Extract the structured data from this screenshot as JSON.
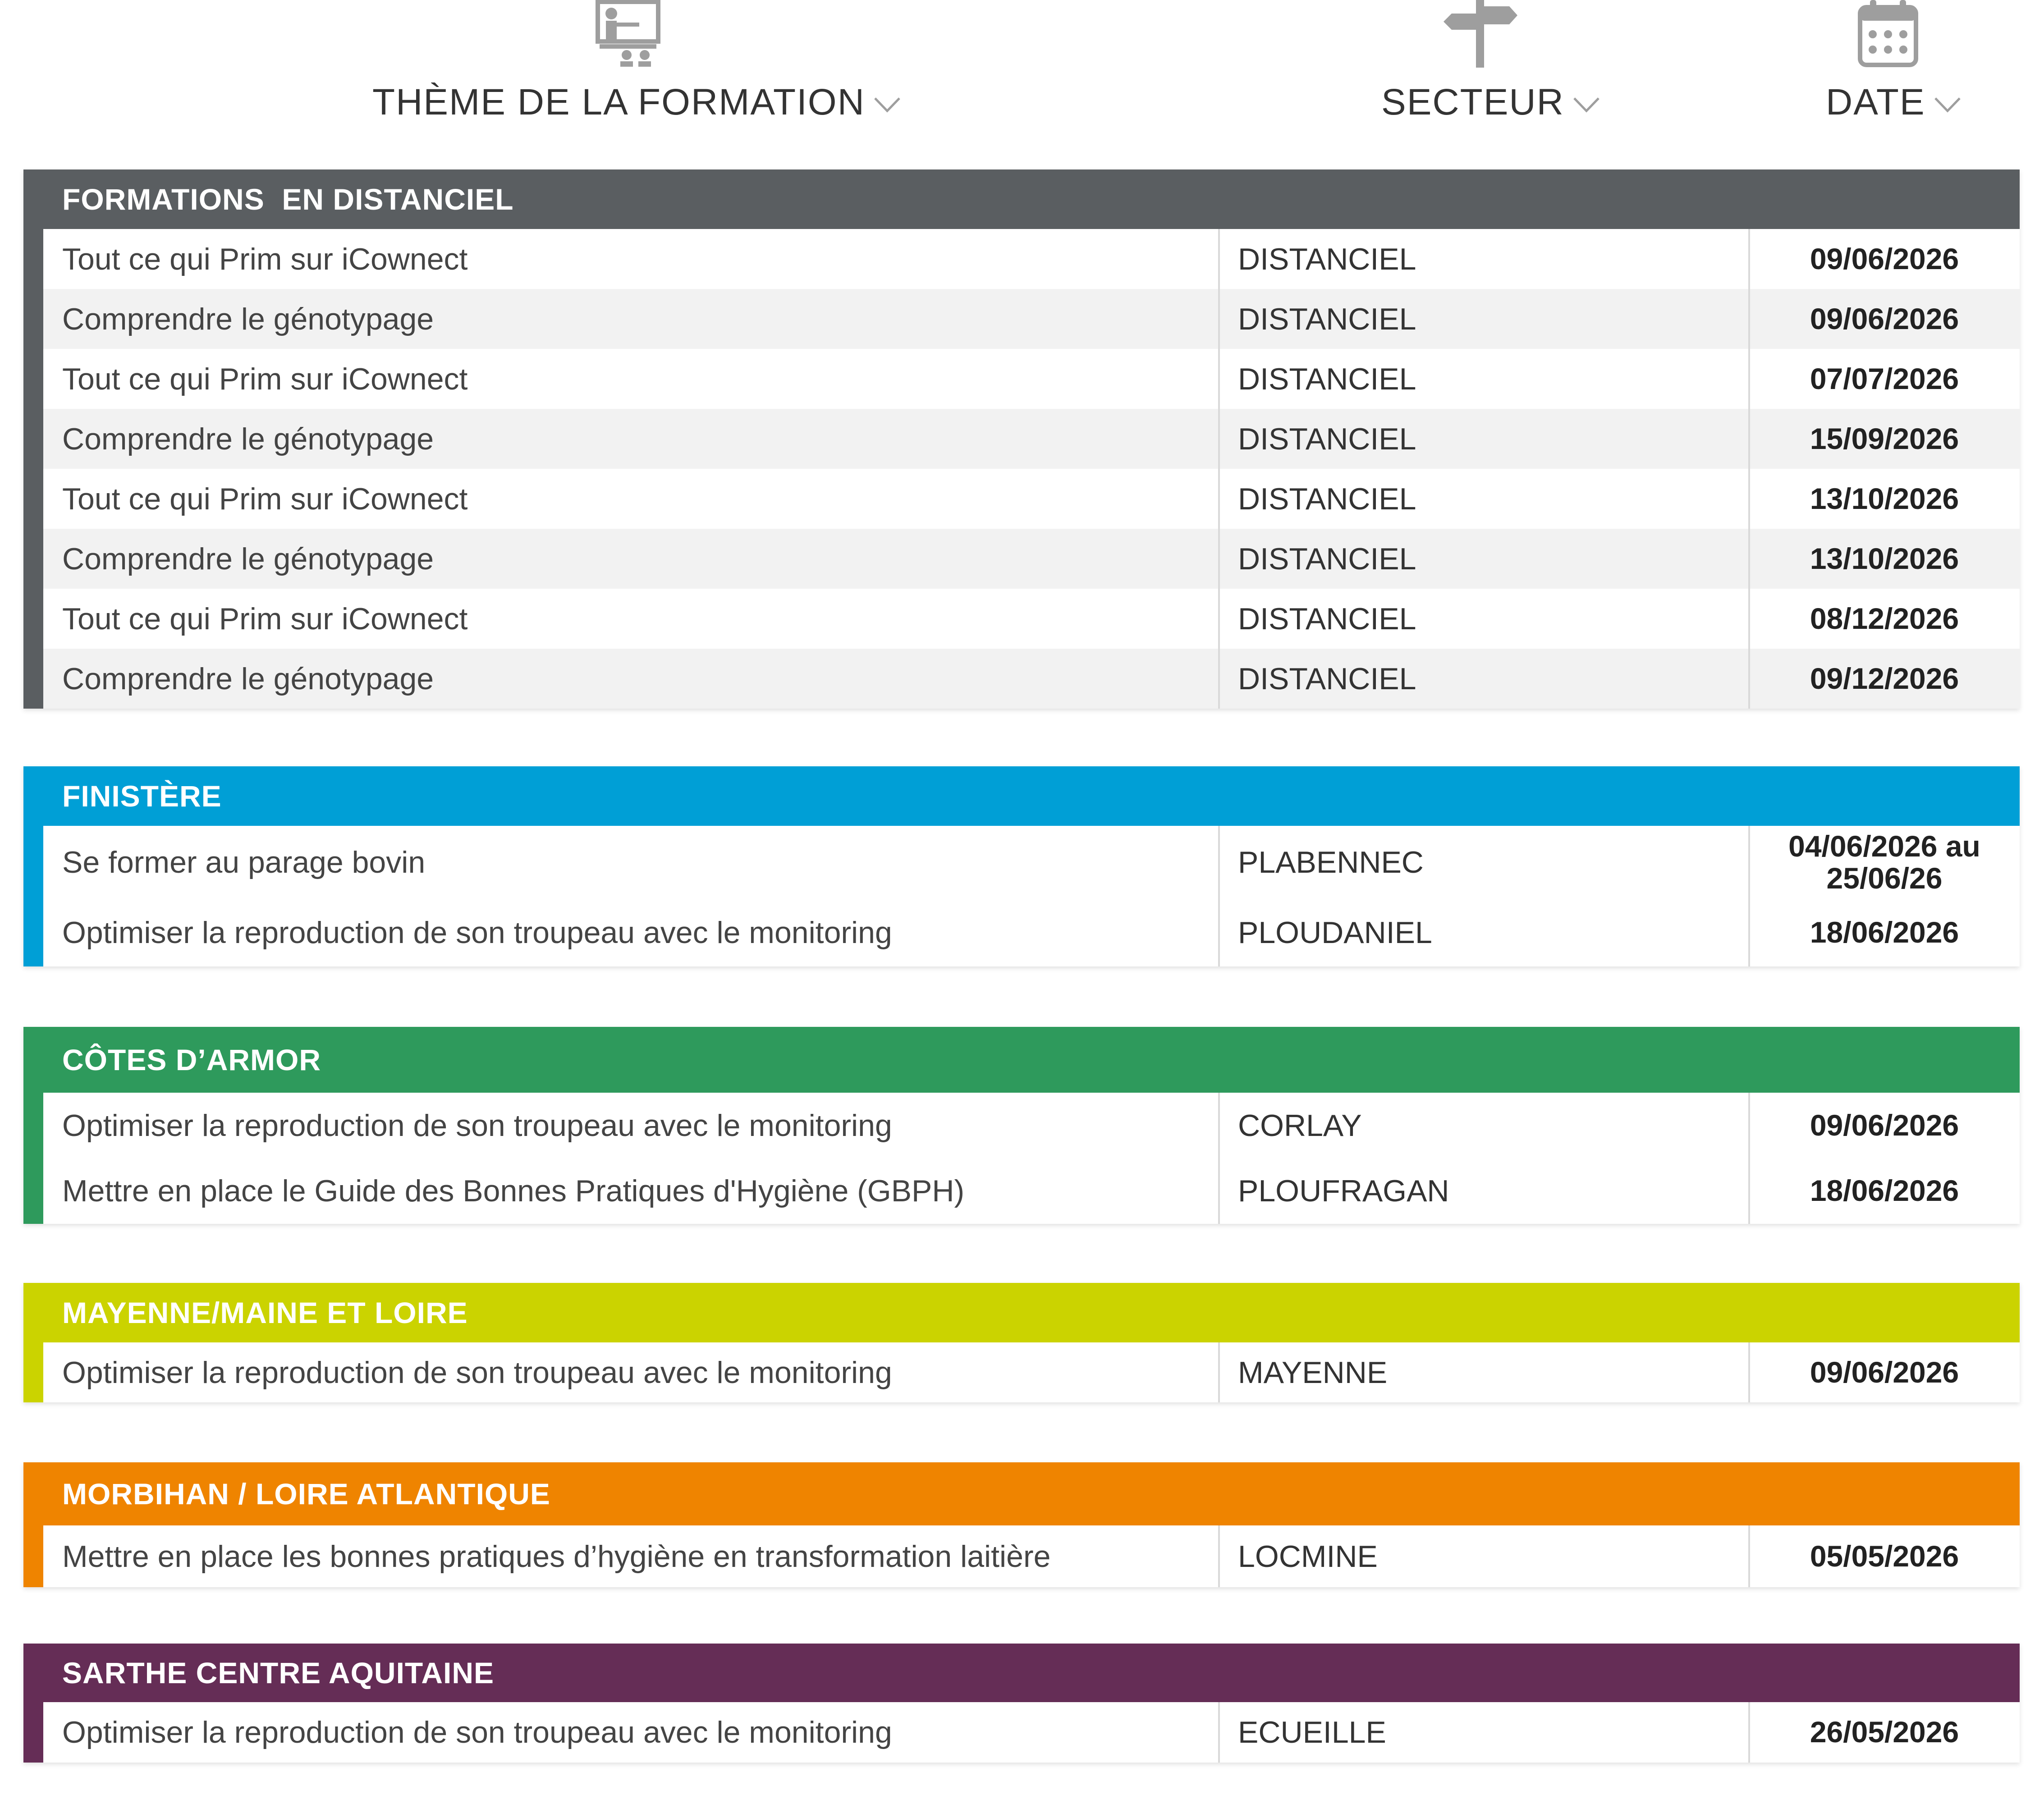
{
  "header": {
    "theme_label": "THÈME DE LA FORMATION",
    "sector_label": "SECTEUR",
    "date_label": "DATE",
    "theme_icon": "training-presentation-icon",
    "sector_icon": "signpost-icon",
    "date_icon": "calendar-icon",
    "icon_color": "#9e9e9e"
  },
  "sections": [
    {
      "title": "FORMATIONS  EN DISTANCIEL",
      "color": "#5a5e61",
      "rows": [
        {
          "theme": "Tout ce qui Prim sur iCownect",
          "sector": "DISTANCIEL",
          "date": "09/06/2026"
        },
        {
          "theme": "Comprendre le génotypage",
          "sector": "DISTANCIEL",
          "date": "09/06/2026"
        },
        {
          "theme": "Tout ce qui Prim sur iCownect",
          "sector": "DISTANCIEL",
          "date": "07/07/2026"
        },
        {
          "theme": "Comprendre le génotypage",
          "sector": "DISTANCIEL",
          "date": "15/09/2026"
        },
        {
          "theme": "Tout ce qui Prim sur iCownect",
          "sector": "DISTANCIEL",
          "date": "13/10/2026"
        },
        {
          "theme": "Comprendre le génotypage",
          "sector": "DISTANCIEL",
          "date": "13/10/2026"
        },
        {
          "theme": "Tout ce qui Prim sur iCownect",
          "sector": "DISTANCIEL",
          "date": "08/12/2026"
        },
        {
          "theme": "Comprendre le génotypage",
          "sector": "DISTANCIEL",
          "date": "09/12/2026"
        }
      ]
    },
    {
      "title": "FINISTÈRE",
      "color": "#009fd6",
      "rows": [
        {
          "theme": "Se former au parage bovin",
          "sector": "PLABENNEC",
          "date": "04/06/2026 au 25/06/26"
        },
        {
          "theme": "Optimiser la reproduction de son troupeau avec le monitoring",
          "sector": "PLOUDANIEL",
          "date": "18/06/2026"
        }
      ]
    },
    {
      "title": "CÔTES D’ARMOR",
      "color": "#2e9a5c",
      "rows": [
        {
          "theme": "Optimiser la reproduction de son troupeau avec le monitoring",
          "sector": "CORLAY",
          "date": "09/06/2026"
        },
        {
          "theme": "Mettre en place le Guide des Bonnes Pratiques d'Hygiène (GBPH)",
          "sector": "PLOUFRAGAN",
          "date": "18/06/2026"
        }
      ]
    },
    {
      "title": "MAYENNE/MAINE ET LOIRE",
      "color": "#cbd300",
      "rows": [
        {
          "theme": "Optimiser la reproduction de son troupeau avec le monitoring",
          "sector": "MAYENNE",
          "date": "09/06/2026"
        }
      ]
    },
    {
      "title": "MORBIHAN / LOIRE ATLANTIQUE",
      "color": "#ef8400",
      "rows": [
        {
          "theme": "Mettre en place les bonnes pratiques d’hygiène en transformation laitière",
          "sector": "LOCMINE",
          "date": "05/05/2026"
        }
      ]
    },
    {
      "title": "SARTHE CENTRE AQUITAINE",
      "color": "#652d56",
      "rows": [
        {
          "theme": "Optimiser la reproduction de son troupeau avec le monitoring",
          "sector": "ECUEILLE",
          "date": "26/05/2026"
        }
      ]
    }
  ]
}
